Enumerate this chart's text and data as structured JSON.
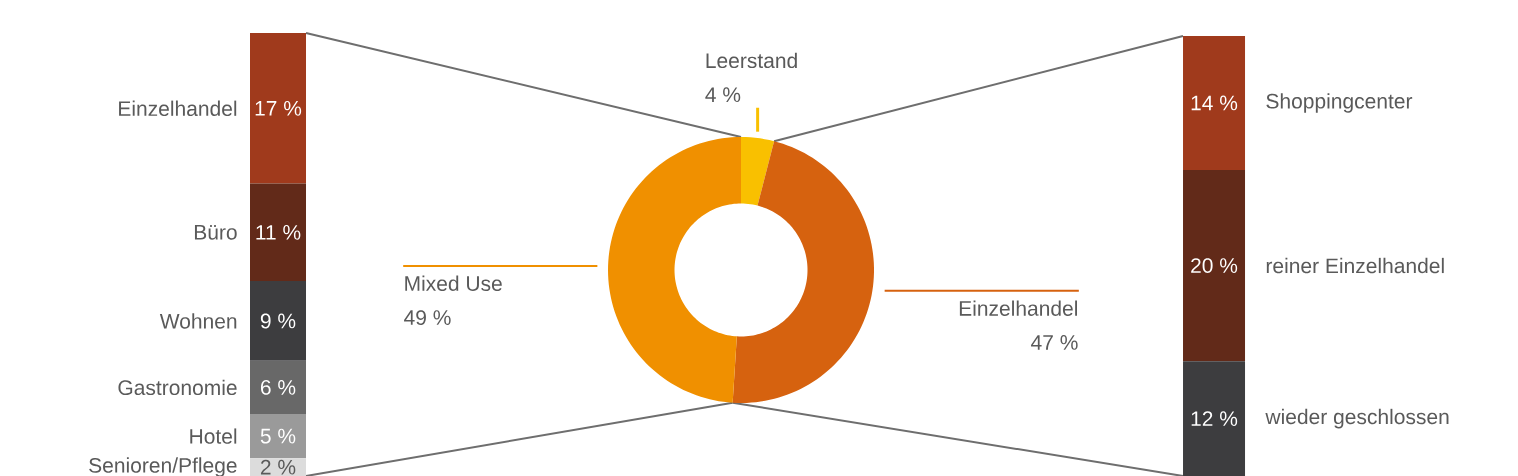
{
  "chart_data": [
    {
      "type": "bar",
      "stacked": true,
      "categories": [
        null
      ],
      "series": [
        {
          "name": "Senioren/Pflege",
          "color": "#dcdcdc",
          "values": [
            2
          ],
          "value_labels": [
            "2 %"
          ]
        },
        {
          "name": "Hotel",
          "color": "#9a9a9a",
          "values": [
            5
          ],
          "value_labels": [
            "5 %"
          ]
        },
        {
          "name": "Gastronomie",
          "color": "#686868",
          "values": [
            6
          ],
          "value_labels": [
            "6 %"
          ]
        },
        {
          "name": "Wohnen",
          "color": "#3d3d3f",
          "values": [
            9
          ],
          "value_labels": [
            "9 %"
          ]
        },
        {
          "name": "Büro",
          "color": "#622a19",
          "values": [
            11
          ],
          "value_labels": [
            "11 %"
          ]
        },
        {
          "name": "Einzelhandel",
          "color": "#a03a1c",
          "values": [
            17
          ],
          "value_labels": [
            "17 %"
          ]
        }
      ]
    },
    {
      "type": "donut",
      "categories": [
        "Leerstand",
        "Einzelhandel",
        "Mixed Use"
      ],
      "values": [
        4,
        47,
        49
      ],
      "colors": [
        "#f9c000",
        "#d6620f",
        "#f09000"
      ],
      "value_labels": [
        "4 %",
        "47 %",
        "49 %"
      ]
    },
    {
      "type": "bar",
      "stacked": true,
      "categories": [
        null
      ],
      "series": [
        {
          "name": "wieder geschlossen",
          "color": "#3d3d3f",
          "values": [
            12
          ],
          "value_labels": [
            "12 %"
          ]
        },
        {
          "name": "reiner Einzelhandel",
          "color": "#622a19",
          "values": [
            20
          ],
          "value_labels": [
            "20 %"
          ]
        },
        {
          "name": "Shoppingcenter",
          "color": "#a03a1c",
          "values": [
            14
          ],
          "value_labels": [
            "14 %"
          ]
        }
      ]
    }
  ]
}
